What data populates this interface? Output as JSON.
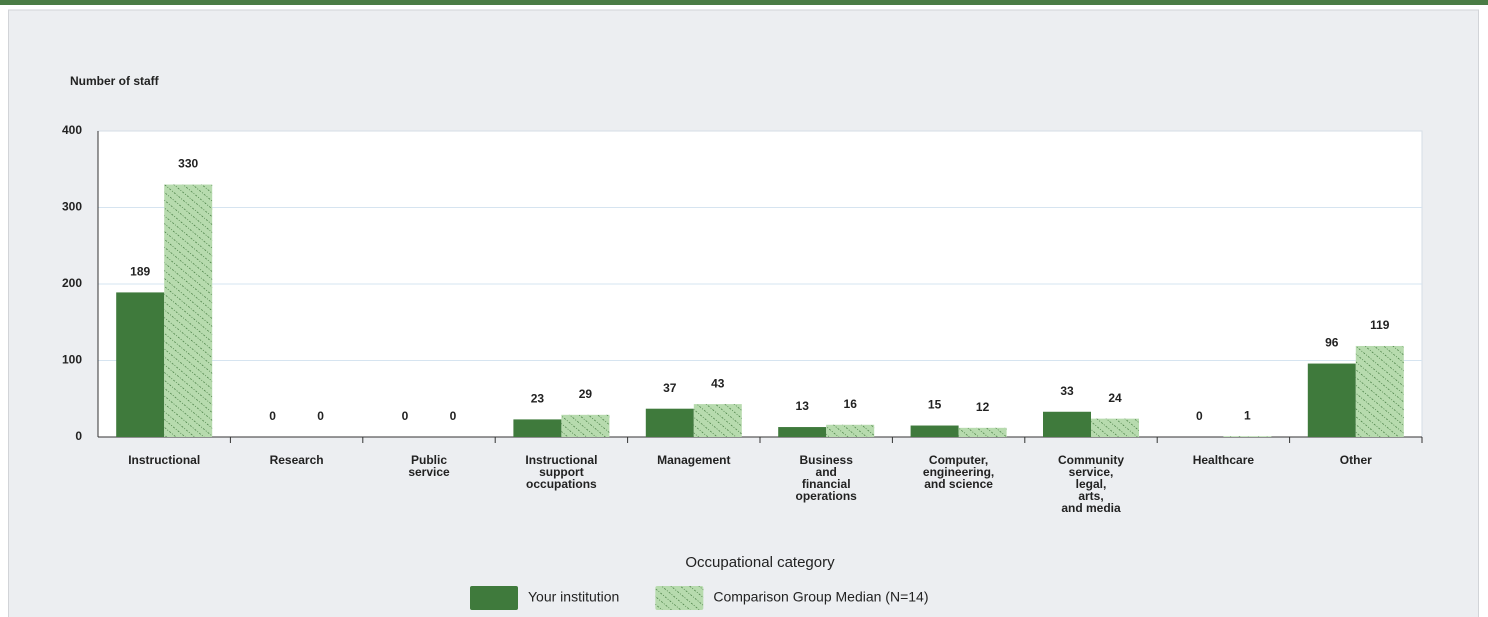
{
  "chart_data": {
    "type": "bar",
    "y_label": "Number of staff",
    "x_label": "Occupational category",
    "categories": [
      "Instructional",
      "Research",
      "Public\nservice",
      "Instructional\nsupport\noccupations",
      "Management",
      "Business\nand\nfinancial\noperations",
      "Computer,\nengineering,\nand science",
      "Community\nservice,\nlegal,\narts,\nand media",
      "Healthcare",
      "Other"
    ],
    "series": [
      {
        "name": "Your institution",
        "color": "#3f7a3c",
        "values": [
          189,
          0,
          0,
          23,
          37,
          13,
          15,
          33,
          0,
          96
        ]
      },
      {
        "name": "Comparison Group Median (N=14)",
        "color": "#b7dbae",
        "hatch": true,
        "values": [
          330,
          0,
          0,
          29,
          43,
          16,
          12,
          24,
          1,
          119
        ]
      }
    ],
    "ylim": [
      0,
      400
    ],
    "yticks": [
      0,
      100,
      200,
      300,
      400
    ],
    "grid": true,
    "legend": "bottom"
  }
}
